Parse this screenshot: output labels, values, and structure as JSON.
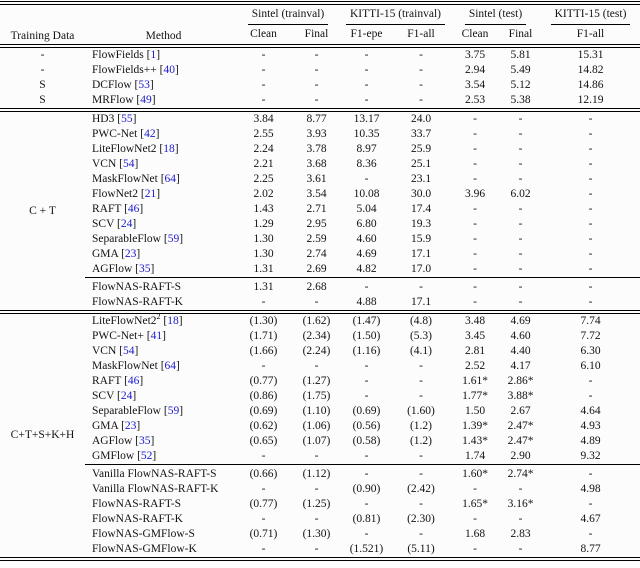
{
  "colors": {
    "background": "#fcfcfc",
    "text": "#121212",
    "citation_blue": "#1b1bce",
    "rule": "#000000"
  },
  "table": {
    "header": {
      "training_data": "Training Data",
      "method": "Method",
      "groups": [
        {
          "label": "Sintel (trainval)",
          "cols": [
            "Clean",
            "Final"
          ]
        },
        {
          "label": "KITTI-15 (trainval)",
          "cols": [
            "F1-epe",
            "F1-all"
          ]
        },
        {
          "label": "Sintel (test)",
          "cols": [
            "Clean",
            "Final"
          ]
        },
        {
          "label": "KITTI-15 (test)",
          "cols": [
            "F1-all"
          ]
        }
      ]
    },
    "groups": [
      {
        "training": null,
        "blocks": [
          [
            {
              "t": "-",
              "method": "FlowFields",
              "cite": "1",
              "vals": [
                "-",
                "-",
                "-",
                "-",
                "3.75",
                "5.81",
                "15.31"
              ]
            },
            {
              "t": "-",
              "method": "FlowFields++",
              "cite": "40",
              "vals": [
                "-",
                "-",
                "-",
                "-",
                "2.94",
                "5.49",
                "14.82"
              ]
            },
            {
              "t": "S",
              "method": "DCFlow",
              "cite": "53",
              "vals": [
                "-",
                "-",
                "-",
                "-",
                "3.54",
                "5.12",
                "14.86"
              ]
            },
            {
              "t": "S",
              "method": "MRFlow",
              "cite": "49",
              "vals": [
                "-",
                "-",
                "-",
                "-",
                "2.53",
                "5.38",
                "12.19"
              ]
            }
          ]
        ]
      },
      {
        "training": "C + T",
        "blocks": [
          [
            {
              "method": "HD3",
              "cite": "55",
              "vals": [
                "3.84",
                "8.77",
                "13.17",
                "24.0",
                "-",
                "-",
                "-"
              ]
            },
            {
              "method": "PWC-Net",
              "cite": "42",
              "vals": [
                "2.55",
                "3.93",
                "10.35",
                "33.7",
                "-",
                "-",
                "-"
              ]
            },
            {
              "method": "LiteFlowNet2",
              "cite": "18",
              "vals": [
                "2.24",
                "3.78",
                "8.97",
                "25.9",
                "-",
                "-",
                "-"
              ]
            },
            {
              "method": "VCN",
              "cite": "54",
              "vals": [
                "2.21",
                "3.68",
                "8.36",
                "25.1",
                "-",
                "-",
                "-"
              ]
            },
            {
              "method": "MaskFlowNet",
              "cite": "64",
              "vals": [
                "2.25",
                "3.61",
                "-",
                "23.1",
                "-",
                "-",
                "-"
              ]
            },
            {
              "method": "FlowNet2",
              "cite": "21",
              "vals": [
                "2.02",
                "3.54",
                "10.08",
                "30.0",
                "3.96",
                "6.02",
                "-"
              ]
            },
            {
              "method": "RAFT",
              "cite": "46",
              "vals": [
                "1.43",
                "2.71",
                "5.04",
                "17.4",
                "-",
                "-",
                "-"
              ]
            },
            {
              "method": "SCV",
              "cite": "24",
              "vals": [
                "1.29",
                "2.95",
                "6.80",
                "19.3",
                "-",
                "-",
                "-"
              ]
            },
            {
              "method": "SeparableFlow",
              "cite": "59",
              "vals": [
                "1.30",
                "2.59",
                "4.60",
                "15.9",
                "-",
                "-",
                "-"
              ]
            },
            {
              "method": "GMA",
              "cite": "23",
              "vals": [
                "1.30",
                "2.74",
                "4.69",
                "17.1",
                "-",
                "-",
                "-"
              ]
            },
            {
              "method": "AGFlow",
              "cite": "35",
              "vals": [
                "1.31",
                "2.69",
                "4.82",
                "17.0",
                "-",
                "-",
                "-"
              ]
            }
          ],
          [
            {
              "method": "FlowNAS-RAFT-S",
              "vals": [
                "1.31",
                "2.68",
                "-",
                "-",
                "-",
                "-",
                "-"
              ]
            },
            {
              "method": "FlowNAS-RAFT-K",
              "vals": [
                "-",
                "-",
                "4.88",
                "17.1",
                "-",
                "-",
                "-"
              ]
            }
          ]
        ]
      },
      {
        "training": "C+T+S+K+H",
        "blocks": [
          [
            {
              "method": "LiteFlowNet2",
              "sup": "2",
              "cite": "18",
              "vals": [
                "(1.30)",
                "(1.62)",
                "(1.47)",
                "(4.8)",
                "3.48",
                "4.69",
                "7.74"
              ]
            },
            {
              "method": "PWC-Net+",
              "cite": "41",
              "vals": [
                "(1.71)",
                "(2.34)",
                "(1.50)",
                "(5.3)",
                "3.45",
                "4.60",
                "7.72"
              ]
            },
            {
              "method": "VCN",
              "cite": "54",
              "vals": [
                "(1.66)",
                "(2.24)",
                "(1.16)",
                "(4.1)",
                "2.81",
                "4.40",
                "6.30"
              ]
            },
            {
              "method": "MaskFlowNet",
              "cite": "64",
              "vals": [
                "-",
                "-",
                "-",
                "-",
                "2.52",
                "4.17",
                "6.10"
              ]
            },
            {
              "method": "RAFT",
              "cite": "46",
              "vals": [
                "(0.77)",
                "(1.27)",
                "-",
                "-",
                "1.61*",
                "2.86*",
                "-"
              ]
            },
            {
              "method": "SCV",
              "cite": "24",
              "vals": [
                "(0.86)",
                "(1.75)",
                "-",
                "-",
                "1.77*",
                "3.88*",
                "-"
              ]
            },
            {
              "method": "SeparableFlow",
              "cite": "59",
              "vals": [
                "(0.69)",
                "(1.10)",
                "(0.69)",
                "(1.60)",
                "1.50",
                "2.67",
                "4.64"
              ]
            },
            {
              "method": "GMA",
              "cite": "23",
              "vals": [
                "(0.62)",
                "(1.06)",
                "(0.56)",
                "(1.2)",
                "1.39*",
                "2.47*",
                "4.93"
              ]
            },
            {
              "method": "AGFlow",
              "cite": "35",
              "vals": [
                "(0.65)",
                "(1.07)",
                "(0.58)",
                "(1.2)",
                "1.43*",
                "2.47*",
                "4.89"
              ]
            },
            {
              "method": "GMFlow",
              "cite": "52",
              "vals": [
                "-",
                "-",
                "-",
                "-",
                "1.74",
                "2.90",
                "9.32"
              ]
            }
          ],
          [
            {
              "method": "Vanilla FlowNAS-RAFT-S",
              "vals": [
                "(0.66)",
                "(1.12)",
                "-",
                "-",
                "1.60*",
                "2.74*",
                "-"
              ]
            },
            {
              "method": "Vanilla FlowNAS-RAFT-K",
              "vals": [
                "-",
                "-",
                "(0.90)",
                "(2.42)",
                "-",
                "-",
                "4.98"
              ]
            },
            {
              "method": "FlowNAS-RAFT-S",
              "vals": [
                "(0.77)",
                "(1.25)",
                "-",
                "-",
                "1.65*",
                "3.16*",
                "-"
              ]
            },
            {
              "method": "FlowNAS-RAFT-K",
              "vals": [
                "-",
                "-",
                "(0.81)",
                "(2.30)",
                "-",
                "-",
                "4.67"
              ]
            },
            {
              "method": "FlowNAS-GMFlow-S",
              "vals": [
                "(0.71)",
                "(1.30)",
                "-",
                "-",
                "1.68",
                "2.83",
                "-"
              ]
            },
            {
              "method": "FlowNAS-GMFlow-K",
              "vals": [
                "-",
                "-",
                "(1.521)",
                "(5.11)",
                "-",
                "-",
                "8.77"
              ]
            }
          ]
        ]
      }
    ]
  }
}
